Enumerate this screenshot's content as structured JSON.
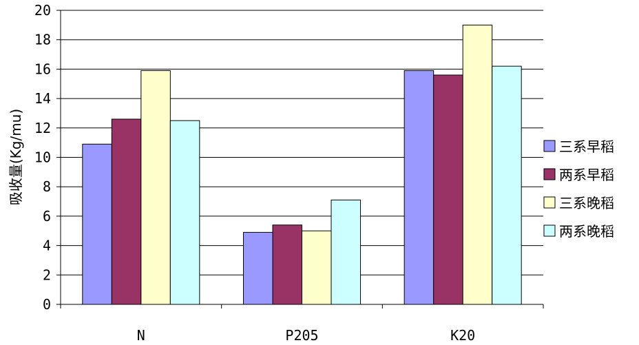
{
  "chart_data": {
    "type": "bar",
    "categories": [
      "N",
      "P205",
      "K20"
    ],
    "series": [
      {
        "name": "三系早稻",
        "values": [
          10.9,
          4.9,
          15.9
        ],
        "color": "#9999FF"
      },
      {
        "name": "两系早稻",
        "values": [
          12.6,
          5.4,
          15.6
        ],
        "color": "#993366"
      },
      {
        "name": "三系晚稻",
        "values": [
          15.9,
          5.0,
          19.0
        ],
        "color": "#FFFFCC"
      },
      {
        "name": "两系晚稻",
        "values": [
          12.5,
          7.1,
          16.2
        ],
        "color": "#CCFFFF"
      }
    ],
    "ylabel": "吸收量(Kg/mu)",
    "xlabel": "",
    "ylim": [
      0,
      20
    ],
    "yticks": [
      "0",
      "2",
      "4",
      "6",
      "8",
      "10",
      "12",
      "14",
      "16",
      "18",
      "20"
    ],
    "grid": true,
    "legend_position": "right"
  }
}
